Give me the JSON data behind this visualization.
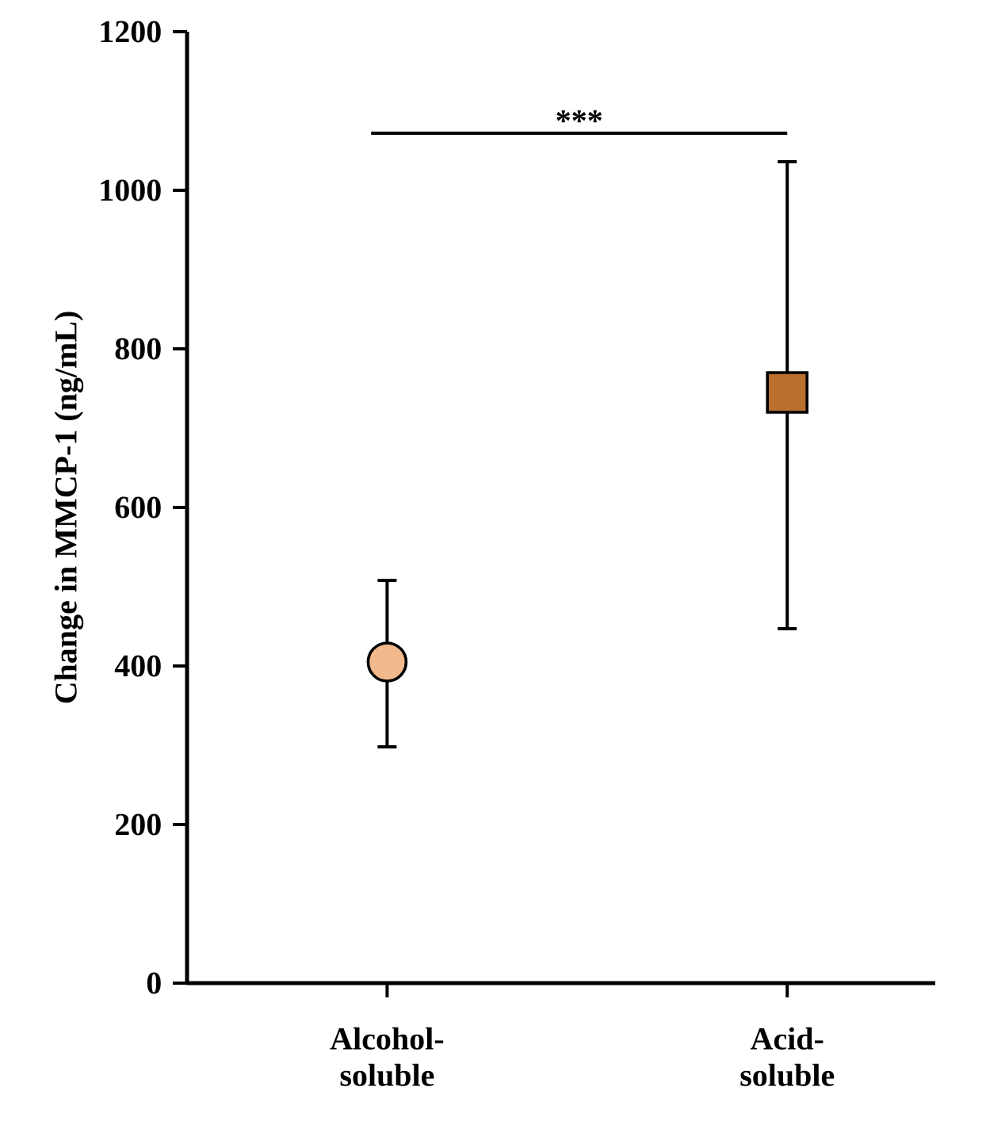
{
  "chart_data": {
    "type": "scatter",
    "ylabel": "Change in MMCP-1 (ng/mL)",
    "categories": [
      "Alcohol-soluble",
      "Acid-soluble"
    ],
    "series": [
      {
        "color": "#f2b98c",
        "marker": "circle",
        "values": [
          405,
          null
        ],
        "errors": [
          [
            298,
            508
          ],
          null
        ]
      },
      {
        "color": "#b9702f",
        "marker": "square",
        "values": [
          null,
          745
        ],
        "errors": [
          null,
          [
            447,
            1036
          ]
        ]
      }
    ],
    "ylim": [
      0,
      1200
    ],
    "yticks": [
      0,
      200,
      400,
      600,
      800,
      1000,
      1200
    ],
    "annotations": [
      "***"
    ]
  }
}
